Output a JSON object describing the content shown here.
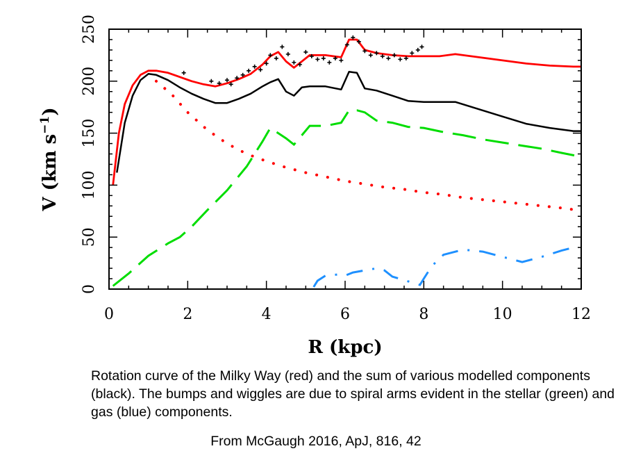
{
  "chart_data": {
    "type": "line",
    "xlabel": "R (kpc)",
    "ylabel": "V (km s",
    "ylabel_superscript": "−1",
    "ylabel_suffix": ")",
    "xlim": [
      0,
      12
    ],
    "ylim": [
      0,
      250
    ],
    "xticks": [
      0,
      2,
      4,
      6,
      8,
      10,
      12
    ],
    "yticks": [
      0,
      50,
      100,
      150,
      200,
      250
    ],
    "grid": false,
    "legend": "none",
    "series": [
      {
        "id": "observed",
        "style": "solid",
        "color": "#ff0000",
        "x": [
          0.1,
          0.25,
          0.4,
          0.6,
          0.8,
          1.0,
          1.2,
          1.5,
          1.8,
          2.1,
          2.4,
          2.7,
          3.0,
          3.3,
          3.6,
          3.9,
          4.1,
          4.3,
          4.5,
          4.7,
          4.9,
          5.1,
          5.5,
          5.9,
          6.1,
          6.3,
          6.5,
          6.8,
          7.2,
          7.6,
          8.0,
          8.4,
          8.8,
          9.4,
          10.0,
          10.6,
          11.2,
          11.8,
          12.0
        ],
        "y": [
          100,
          150,
          178,
          196,
          206,
          210,
          210,
          208,
          204,
          200,
          197,
          195,
          198,
          202,
          207,
          216,
          224,
          228,
          219,
          213,
          219,
          225,
          225,
          223,
          240,
          240,
          230,
          227,
          225,
          224,
          224,
          224,
          226,
          223,
          220,
          217,
          215,
          214,
          214
        ]
      },
      {
        "id": "total-model",
        "style": "solid",
        "color": "#000000",
        "x": [
          0.2,
          0.4,
          0.6,
          0.8,
          1.0,
          1.2,
          1.5,
          1.8,
          2.1,
          2.4,
          2.7,
          3.0,
          3.3,
          3.6,
          3.9,
          4.1,
          4.3,
          4.5,
          4.7,
          4.9,
          5.1,
          5.5,
          5.9,
          6.1,
          6.3,
          6.5,
          6.8,
          7.2,
          7.6,
          8.0,
          8.4,
          8.8,
          9.4,
          10.0,
          10.6,
          11.2,
          11.8,
          12.0
        ],
        "y": [
          112,
          160,
          186,
          201,
          207,
          206,
          201,
          194,
          188,
          183,
          179,
          179,
          183,
          188,
          195,
          199,
          202,
          190,
          186,
          194,
          195,
          195,
          192,
          209,
          208,
          193,
          191,
          186,
          181,
          180,
          180,
          180,
          173,
          166,
          159,
          155,
          152,
          152
        ]
      },
      {
        "id": "stellar-bulge",
        "style": "dotted",
        "color": "#ff0000",
        "x": [
          1.2,
          1.6,
          2.0,
          2.5,
          3.0,
          3.5,
          4.0,
          4.5,
          5.0,
          5.5,
          6.0,
          6.5,
          7.0,
          7.5,
          8.0,
          8.5,
          9.0,
          9.5,
          10.0,
          10.5,
          11.0,
          11.5,
          11.9
        ],
        "y": [
          200,
          187,
          170,
          153,
          140,
          130,
          123,
          117,
          112,
          108,
          104,
          101,
          98,
          96,
          93,
          91,
          88,
          86,
          84,
          82,
          80,
          78,
          76
        ]
      },
      {
        "id": "stellar-disk",
        "style": "long-dash",
        "color": "#00dd00",
        "x": [
          0.1,
          0.5,
          1.0,
          1.5,
          1.8,
          2.1,
          2.5,
          3.0,
          3.5,
          3.9,
          4.1,
          4.3,
          4.5,
          4.7,
          4.9,
          5.1,
          5.5,
          5.9,
          6.1,
          6.3,
          6.5,
          6.8,
          7.2,
          7.6,
          8.0,
          8.5,
          9.0,
          9.5,
          10.0,
          10.5,
          11.0,
          11.5,
          11.9
        ],
        "y": [
          3,
          15,
          32,
          44,
          50,
          60,
          76,
          95,
          118,
          142,
          155,
          150,
          145,
          139,
          148,
          157,
          157,
          160,
          172,
          172,
          170,
          162,
          160,
          156,
          155,
          151,
          148,
          144,
          141,
          138,
          135,
          131,
          128
        ]
      },
      {
        "id": "gas",
        "style": "dash-dot",
        "color": "#1e90ff",
        "x": [
          5.2,
          5.3,
          5.5,
          5.8,
          6.0,
          6.2,
          6.5,
          6.8,
          7.0,
          7.2,
          7.9,
          8.0,
          8.2,
          8.5,
          9.0,
          9.5,
          10.0,
          10.5,
          11.0,
          11.5,
          11.8
        ],
        "y": [
          2,
          8,
          13,
          14,
          13,
          16,
          18,
          20,
          18,
          12,
          4,
          10,
          22,
          33,
          38,
          36,
          31,
          26,
          31,
          37,
          40
        ]
      }
    ],
    "data_points": {
      "style": "plus-markers",
      "color": "#000000",
      "x": [
        1.9,
        2.6,
        2.8,
        3.0,
        3.1,
        3.25,
        3.4,
        3.55,
        3.7,
        3.85,
        4.0,
        4.1,
        4.25,
        4.4,
        4.55,
        4.7,
        4.85,
        5.0,
        5.15,
        5.3,
        5.45,
        5.6,
        5.75,
        5.9,
        6.05,
        6.2,
        6.35,
        6.5,
        6.65,
        6.8,
        6.95,
        7.1,
        7.25,
        7.4,
        7.55,
        7.7,
        7.85,
        7.95
      ],
      "y": [
        208,
        200,
        198,
        201,
        197,
        203,
        206,
        210,
        214,
        211,
        217,
        225,
        222,
        233,
        226,
        218,
        216,
        228,
        224,
        221,
        222,
        218,
        222,
        220,
        235,
        242,
        238,
        229,
        225,
        227,
        224,
        222,
        225,
        221,
        222,
        227,
        230,
        233
      ]
    }
  },
  "caption": "Rotation curve of the Milky Way (red) and the sum of various modelled components (black). The bumps and wiggles are due to spiral arms evident in the stellar (green) and gas (blue) components.",
  "credit": "From McGaugh 2016, ApJ, 816, 42"
}
